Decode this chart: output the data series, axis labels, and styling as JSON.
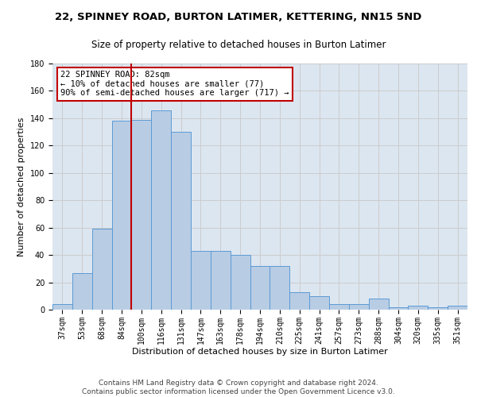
{
  "title1": "22, SPINNEY ROAD, BURTON LATIMER, KETTERING, NN15 5ND",
  "title2": "Size of property relative to detached houses in Burton Latimer",
  "xlabel": "Distribution of detached houses by size in Burton Latimer",
  "ylabel": "Number of detached properties",
  "categories": [
    "37sqm",
    "53sqm",
    "68sqm",
    "84sqm",
    "100sqm",
    "116sqm",
    "131sqm",
    "147sqm",
    "163sqm",
    "178sqm",
    "194sqm",
    "210sqm",
    "225sqm",
    "241sqm",
    "257sqm",
    "273sqm",
    "288sqm",
    "304sqm",
    "320sqm",
    "335sqm",
    "351sqm"
  ],
  "values": [
    4,
    27,
    59,
    138,
    139,
    146,
    130,
    43,
    43,
    40,
    32,
    32,
    13,
    10,
    4,
    4,
    8,
    2,
    3,
    2,
    3
  ],
  "bar_color": "#b8cce4",
  "bar_edge_color": "#5b9bd5",
  "vline_x": 3.5,
  "vline_color": "#c00000",
  "annotation_line1": "22 SPINNEY ROAD: 82sqm",
  "annotation_line2": "← 10% of detached houses are smaller (77)",
  "annotation_line3": "90% of semi-detached houses are larger (717) →",
  "annotation_box_color": "#ffffff",
  "annotation_box_edge": "#c00000",
  "ylim": [
    0,
    180
  ],
  "yticks": [
    0,
    20,
    40,
    60,
    80,
    100,
    120,
    140,
    160,
    180
  ],
  "grid_color": "#cccccc",
  "bg_color": "#dce6f0",
  "footer1": "Contains HM Land Registry data © Crown copyright and database right 2024.",
  "footer2": "Contains public sector information licensed under the Open Government Licence v3.0.",
  "title1_fontsize": 9.5,
  "title2_fontsize": 8.5,
  "xlabel_fontsize": 8,
  "ylabel_fontsize": 8,
  "tick_fontsize": 7,
  "footer_fontsize": 6.5,
  "annot_fontsize": 7.5
}
